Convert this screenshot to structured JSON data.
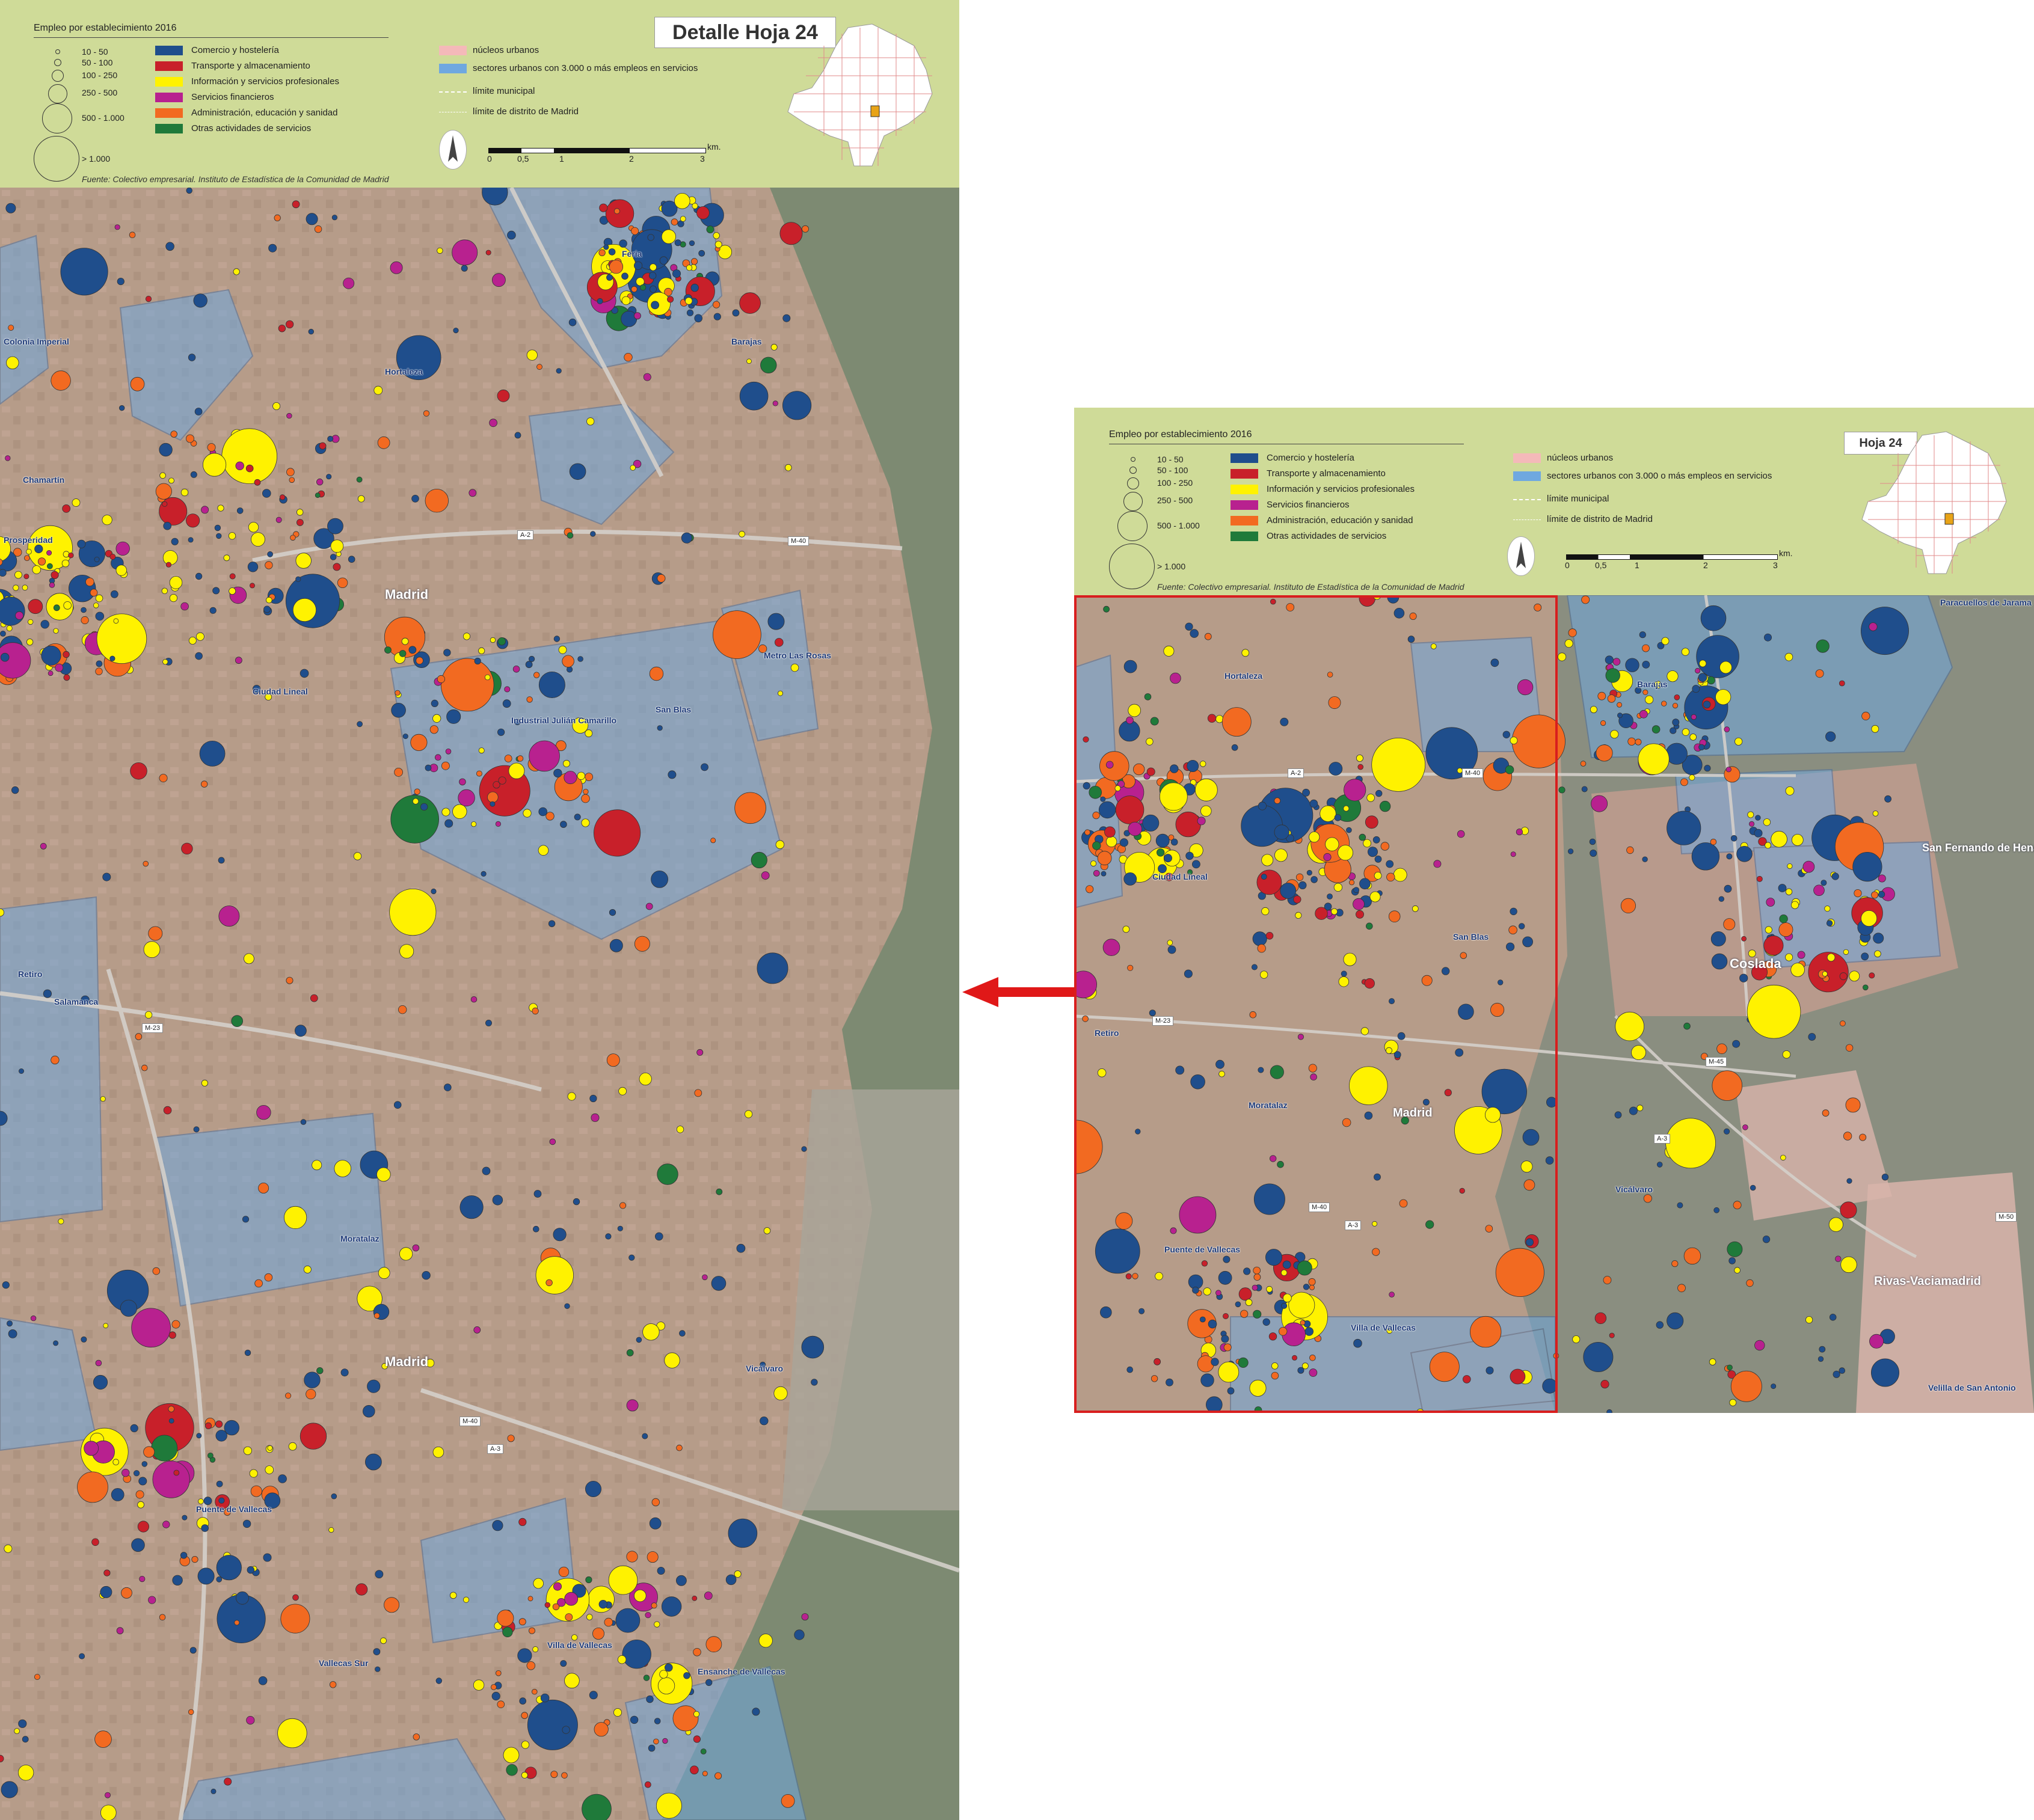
{
  "legend": {
    "title": "Empleo por establecimiento 2016",
    "sizes": [
      "10 - 50",
      "50 - 100",
      "100 - 250",
      "250 - 500",
      "500 - 1.000",
      "> 1.000"
    ],
    "categories": [
      {
        "label": "Comercio y hostelería",
        "color": "#1f4e8c"
      },
      {
        "label": "Transporte y almacenamiento",
        "color": "#c8202a"
      },
      {
        "label": "Información y servicios profesionales",
        "color": "#fff200"
      },
      {
        "label": "Servicios financieros",
        "color": "#b8218f"
      },
      {
        "label": "Administración, educación y sanidad",
        "color": "#f26a21"
      },
      {
        "label": "Otras actividades de servicios",
        "color": "#1f7a3a"
      }
    ],
    "areas": [
      {
        "label": "núcleos urbanos",
        "color": "#f4b9b9"
      },
      {
        "label": "sectores urbanos con 3.000 o más empleos en servicios",
        "color": "#6fa8e0"
      }
    ],
    "lines": [
      "límite municipal",
      "límite de distrito de Madrid"
    ],
    "source": "Fuente: Colectivo empresarial. Instituto de Estadística de la Comunidad de Madrid",
    "scale": {
      "unit": "km.",
      "ticks": [
        "0",
        "0,5",
        "1",
        "2",
        "3"
      ]
    }
  },
  "detail": {
    "title": "Detalle Hoja 24",
    "places": [
      "Feria",
      "Barajas",
      "Hortaleza",
      "Chamartín",
      "Madrid",
      "Ciudad Lineal",
      "San Blas",
      "Salamanca",
      "Retiro",
      "Moratalaz",
      "Vicálvaro",
      "Puente de Vallecas",
      "Villa de Vallecas",
      "Industrial Julián Camarillo",
      "Colonia Imperial",
      "Prosperidad",
      "Metro Las Rosas",
      "Vallecas Sur",
      "Ensanche de Vallecas"
    ],
    "roads": [
      "A-2",
      "M-40",
      "M-23",
      "A-3",
      "M-40"
    ]
  },
  "overview": {
    "title": "Hoja 24",
    "places": [
      "Barajas",
      "Hortaleza",
      "Madrid",
      "Coslada",
      "San Fernando de Henares",
      "Rivas-Vaciamadrid",
      "Vicálvaro",
      "Paracuellos de Jarama",
      "Velilla de San Antonio",
      "San Blas",
      "Moratalaz",
      "Puente de Vallecas",
      "Villa de Vallecas",
      "Retiro",
      "Ciudad Lineal"
    ],
    "roads": [
      "A-2",
      "M-40",
      "M-23",
      "M-45",
      "A-3",
      "M-50",
      "M-40",
      "A-3"
    ]
  }
}
